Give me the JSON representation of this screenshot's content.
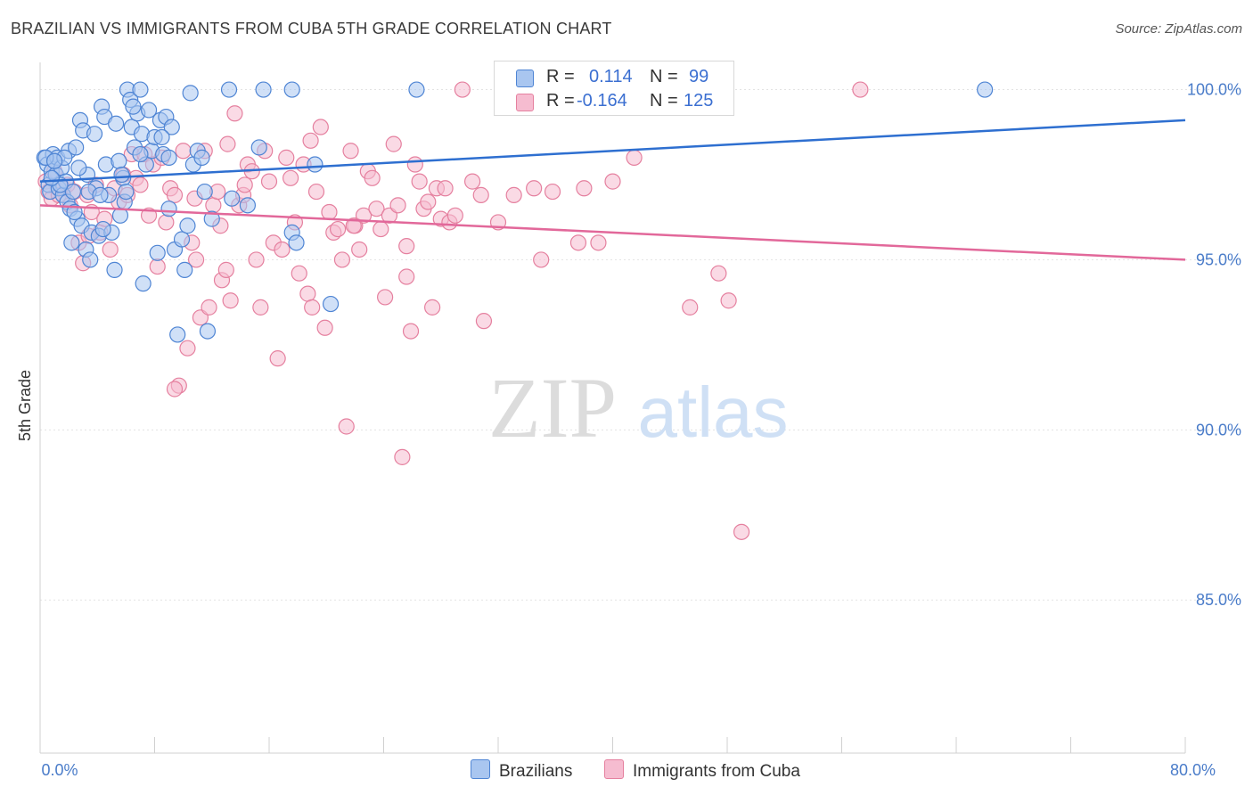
{
  "title": "BRAZILIAN VS IMMIGRANTS FROM CUBA 5TH GRADE CORRELATION CHART",
  "source": "Source: ZipAtlas.com",
  "watermark": {
    "zip": "ZIP",
    "atlas": "atlas"
  },
  "legend": {
    "row1": {
      "r_label": "R =",
      "r_value": "0.114",
      "n_label": "N =",
      "n_value": "99"
    },
    "row2": {
      "r_label": "R =",
      "r_value": "-0.164",
      "n_label": "N =",
      "n_value": "125"
    }
  },
  "bottom_legend": {
    "series1": "Brazilians",
    "series2": "Immigrants from Cuba"
  },
  "colors": {
    "blue_fill": "#a9c6f0",
    "blue_stroke": "#4f85d4",
    "blue_line": "#2e6fd0",
    "pink_fill": "#f6bcd0",
    "pink_stroke": "#e5809f",
    "pink_line": "#e2689a",
    "tick_text": "#4a7cc9"
  },
  "chart_data": {
    "type": "scatter",
    "title": "BRAZILIAN VS IMMIGRANTS FROM CUBA 5TH GRADE CORRELATION CHART",
    "xlabel": "",
    "ylabel": "5th Grade",
    "xlim": [
      0,
      80
    ],
    "ylim": [
      80.5,
      100.8
    ],
    "x_tick_labels": [
      "0.0%",
      "80.0%"
    ],
    "y_ticks": [
      85,
      90,
      95,
      100
    ],
    "y_tick_labels": [
      "85.0%",
      "90.0%",
      "95.0%",
      "100.0%"
    ],
    "grid": true,
    "legend_position": "top-center",
    "series": [
      {
        "name": "Brazilians",
        "r": 0.114,
        "n": 99,
        "trend": {
          "x": [
            0,
            80
          ],
          "y": [
            97.3,
            99.1
          ]
        },
        "points": [
          [
            0.3,
            98.0
          ],
          [
            0.5,
            97.8
          ],
          [
            0.6,
            97.2
          ],
          [
            0.7,
            97.0
          ],
          [
            0.8,
            97.6
          ],
          [
            0.9,
            98.1
          ],
          [
            1.0,
            97.9
          ],
          [
            1.1,
            97.5
          ],
          [
            1.2,
            98.0
          ],
          [
            1.3,
            97.1
          ],
          [
            1.5,
            97.7
          ],
          [
            1.6,
            96.9
          ],
          [
            1.8,
            97.3
          ],
          [
            1.9,
            96.7
          ],
          [
            2.0,
            98.2
          ],
          [
            2.1,
            96.5
          ],
          [
            2.2,
            95.5
          ],
          [
            2.3,
            97.0
          ],
          [
            2.5,
            98.3
          ],
          [
            2.6,
            96.2
          ],
          [
            2.8,
            99.1
          ],
          [
            2.9,
            96.0
          ],
          [
            3.0,
            98.8
          ],
          [
            3.2,
            95.3
          ],
          [
            3.3,
            97.5
          ],
          [
            3.5,
            95.0
          ],
          [
            3.6,
            95.8
          ],
          [
            3.8,
            98.7
          ],
          [
            3.9,
            97.1
          ],
          [
            4.1,
            95.7
          ],
          [
            4.3,
            99.5
          ],
          [
            4.5,
            99.2
          ],
          [
            4.6,
            97.8
          ],
          [
            4.8,
            96.9
          ],
          [
            5.0,
            95.8
          ],
          [
            5.2,
            94.7
          ],
          [
            5.3,
            99.0
          ],
          [
            5.5,
            97.9
          ],
          [
            5.6,
            96.3
          ],
          [
            5.8,
            97.4
          ],
          [
            5.9,
            96.7
          ],
          [
            6.1,
            100.0
          ],
          [
            6.3,
            99.7
          ],
          [
            6.4,
            98.9
          ],
          [
            6.6,
            98.3
          ],
          [
            6.8,
            99.3
          ],
          [
            7.0,
            100.0
          ],
          [
            7.1,
            98.7
          ],
          [
            7.2,
            94.3
          ],
          [
            7.4,
            97.8
          ],
          [
            7.6,
            99.4
          ],
          [
            7.8,
            98.2
          ],
          [
            8.0,
            98.6
          ],
          [
            8.2,
            95.2
          ],
          [
            8.4,
            99.1
          ],
          [
            8.6,
            98.1
          ],
          [
            8.8,
            99.2
          ],
          [
            9.0,
            96.5
          ],
          [
            9.2,
            98.9
          ],
          [
            9.4,
            95.3
          ],
          [
            9.6,
            92.8
          ],
          [
            9.9,
            95.6
          ],
          [
            10.1,
            94.7
          ],
          [
            10.3,
            96.0
          ],
          [
            10.5,
            99.9
          ],
          [
            10.7,
            97.8
          ],
          [
            11.0,
            98.2
          ],
          [
            11.3,
            98.0
          ],
          [
            11.5,
            97.0
          ],
          [
            11.7,
            92.9
          ],
          [
            12.0,
            96.2
          ],
          [
            13.2,
            100.0
          ],
          [
            13.4,
            96.8
          ],
          [
            14.5,
            96.6
          ],
          [
            15.3,
            98.3
          ],
          [
            15.6,
            100.0
          ],
          [
            17.6,
            95.8
          ],
          [
            17.9,
            95.5
          ],
          [
            17.6,
            100.0
          ],
          [
            19.2,
            97.8
          ],
          [
            20.3,
            93.7
          ],
          [
            26.3,
            100.0
          ],
          [
            66.0,
            100.0
          ],
          [
            1.4,
            97.2
          ],
          [
            2.4,
            96.4
          ],
          [
            3.4,
            97.0
          ],
          [
            4.4,
            95.9
          ],
          [
            6.0,
            97.0
          ],
          [
            7.0,
            98.1
          ],
          [
            8.5,
            98.6
          ],
          [
            1.7,
            98.0
          ],
          [
            0.4,
            98.0
          ],
          [
            1.0,
            97.9
          ],
          [
            2.7,
            97.7
          ],
          [
            4.2,
            96.9
          ],
          [
            5.7,
            97.5
          ],
          [
            9.0,
            98.0
          ],
          [
            0.8,
            97.4
          ],
          [
            6.5,
            99.5
          ]
        ]
      },
      {
        "name": "Immigrants from Cuba",
        "r": -0.164,
        "n": 125,
        "trend": {
          "x": [
            0,
            80
          ],
          "y": [
            96.6,
            95.0
          ]
        },
        "points": [
          [
            0.4,
            97.3
          ],
          [
            0.6,
            97.0
          ],
          [
            0.8,
            96.8
          ],
          [
            1.0,
            97.6
          ],
          [
            1.3,
            96.9
          ],
          [
            1.6,
            97.1
          ],
          [
            1.9,
            97.2
          ],
          [
            2.1,
            96.6
          ],
          [
            2.4,
            97.0
          ],
          [
            2.7,
            95.5
          ],
          [
            3.0,
            94.9
          ],
          [
            3.3,
            96.9
          ],
          [
            3.6,
            96.4
          ],
          [
            3.9,
            97.2
          ],
          [
            4.2,
            95.8
          ],
          [
            4.5,
            96.2
          ],
          [
            4.9,
            95.3
          ],
          [
            5.2,
            97.1
          ],
          [
            5.5,
            96.7
          ],
          [
            5.8,
            97.5
          ],
          [
            6.1,
            96.9
          ],
          [
            6.4,
            98.1
          ],
          [
            6.7,
            97.4
          ],
          [
            7.0,
            97.2
          ],
          [
            7.3,
            98.1
          ],
          [
            7.6,
            96.3
          ],
          [
            7.9,
            97.8
          ],
          [
            8.2,
            94.8
          ],
          [
            8.5,
            98.0
          ],
          [
            8.8,
            96.1
          ],
          [
            9.1,
            97.1
          ],
          [
            9.4,
            96.9
          ],
          [
            9.7,
            91.3
          ],
          [
            10.0,
            98.2
          ],
          [
            10.3,
            92.4
          ],
          [
            10.6,
            95.5
          ],
          [
            10.9,
            95.0
          ],
          [
            11.2,
            93.3
          ],
          [
            11.5,
            98.2
          ],
          [
            11.8,
            93.6
          ],
          [
            12.1,
            96.6
          ],
          [
            12.4,
            97.0
          ],
          [
            12.7,
            94.4
          ],
          [
            13.0,
            94.7
          ],
          [
            13.3,
            93.8
          ],
          [
            13.6,
            99.3
          ],
          [
            13.9,
            96.6
          ],
          [
            14.2,
            96.9
          ],
          [
            14.5,
            97.8
          ],
          [
            14.8,
            97.6
          ],
          [
            15.1,
            95.0
          ],
          [
            15.4,
            93.6
          ],
          [
            15.7,
            98.2
          ],
          [
            16.0,
            97.3
          ],
          [
            16.3,
            95.5
          ],
          [
            16.6,
            92.1
          ],
          [
            16.9,
            95.3
          ],
          [
            17.2,
            98.0
          ],
          [
            17.5,
            97.4
          ],
          [
            17.8,
            96.1
          ],
          [
            18.1,
            94.6
          ],
          [
            18.4,
            97.8
          ],
          [
            18.7,
            94.0
          ],
          [
            19.0,
            93.6
          ],
          [
            19.3,
            97.0
          ],
          [
            19.6,
            98.9
          ],
          [
            19.9,
            93.0
          ],
          [
            20.2,
            96.4
          ],
          [
            20.5,
            95.8
          ],
          [
            20.8,
            95.9
          ],
          [
            21.1,
            95.0
          ],
          [
            21.4,
            90.1
          ],
          [
            21.7,
            98.2
          ],
          [
            22.0,
            96.0
          ],
          [
            22.3,
            95.3
          ],
          [
            22.6,
            96.3
          ],
          [
            22.9,
            97.6
          ],
          [
            23.2,
            97.4
          ],
          [
            23.5,
            96.5
          ],
          [
            23.8,
            95.9
          ],
          [
            24.1,
            93.9
          ],
          [
            24.4,
            96.3
          ],
          [
            24.7,
            98.4
          ],
          [
            25.0,
            96.6
          ],
          [
            25.3,
            89.2
          ],
          [
            25.6,
            94.5
          ],
          [
            25.9,
            92.9
          ],
          [
            26.2,
            97.8
          ],
          [
            26.5,
            97.3
          ],
          [
            26.8,
            96.5
          ],
          [
            27.1,
            96.7
          ],
          [
            27.4,
            93.6
          ],
          [
            27.7,
            97.1
          ],
          [
            28.0,
            96.2
          ],
          [
            28.3,
            97.1
          ],
          [
            28.6,
            96.1
          ],
          [
            29.0,
            96.3
          ],
          [
            30.2,
            97.3
          ],
          [
            30.8,
            96.9
          ],
          [
            31.0,
            93.2
          ],
          [
            32.0,
            96.1
          ],
          [
            33.1,
            96.9
          ],
          [
            34.5,
            97.1
          ],
          [
            35.0,
            95.0
          ],
          [
            35.8,
            97.0
          ],
          [
            37.6,
            95.5
          ],
          [
            38.0,
            97.1
          ],
          [
            39.0,
            95.5
          ],
          [
            40.0,
            97.3
          ],
          [
            41.5,
            98.0
          ],
          [
            45.4,
            93.6
          ],
          [
            47.4,
            94.6
          ],
          [
            48.1,
            93.8
          ],
          [
            49.0,
            87.0
          ],
          [
            13.1,
            98.4
          ],
          [
            9.4,
            91.2
          ],
          [
            3.4,
            95.7
          ],
          [
            12.6,
            96.0
          ],
          [
            29.5,
            100.0
          ],
          [
            57.3,
            100.0
          ],
          [
            10.8,
            96.8
          ],
          [
            21.9,
            96.0
          ],
          [
            14.3,
            97.2
          ],
          [
            18.9,
            98.5
          ],
          [
            25.6,
            95.4
          ]
        ]
      }
    ]
  }
}
